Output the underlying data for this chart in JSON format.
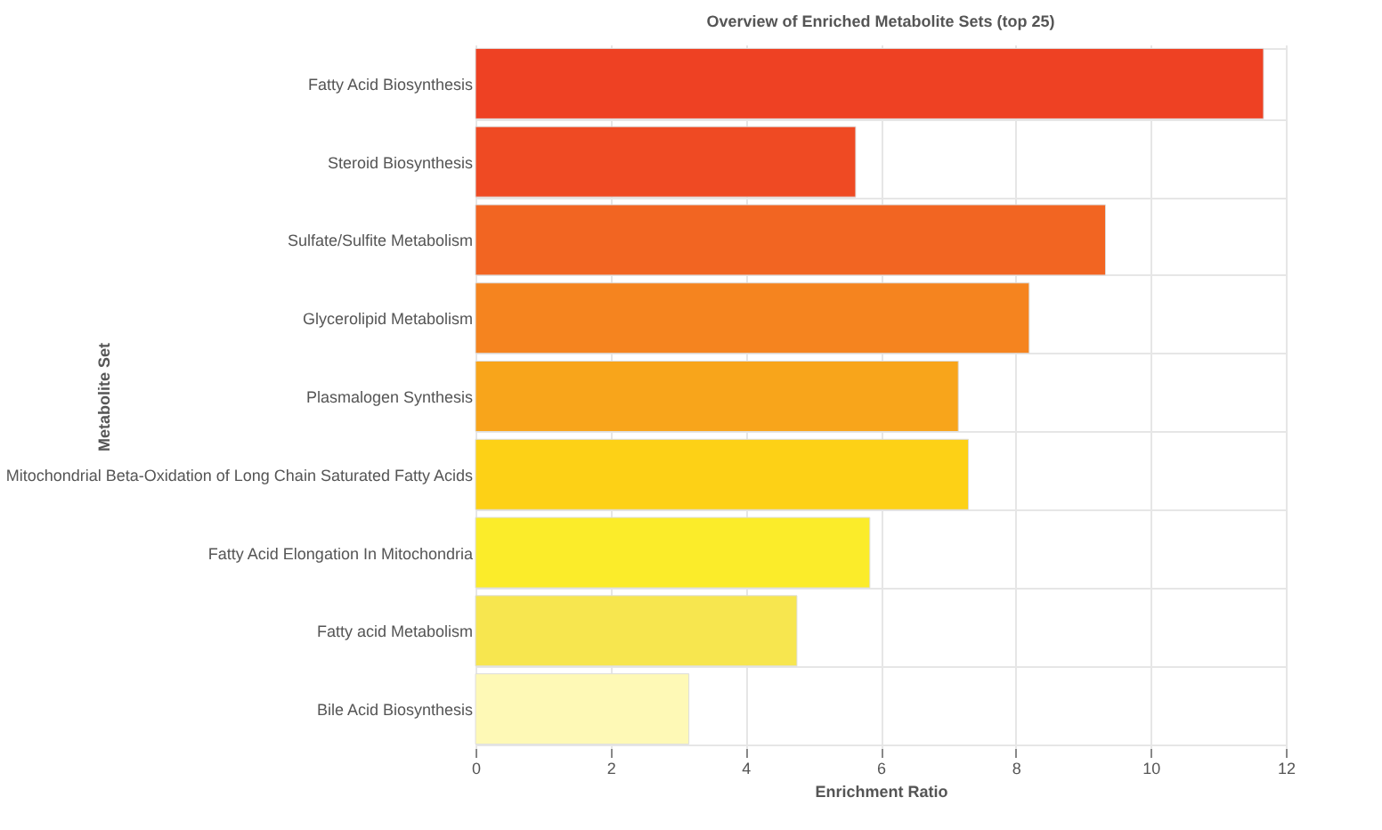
{
  "chart_data": {
    "type": "bar",
    "orientation": "horizontal",
    "title": "Overview of Enriched Metabolite Sets (top 25)",
    "xlabel": "Enrichment Ratio",
    "ylabel": "Metabolite Set",
    "categories": [
      "Fatty Acid Biosynthesis",
      "Steroid Biosynthesis",
      "Sulfate/Sulfite Metabolism",
      "Glycerolipid Metabolism",
      "Plasmalogen Synthesis",
      "Mitochondrial Beta-Oxidation of Long Chain Saturated Fatty Acids",
      "Fatty Acid Elongation In Mitochondria",
      "Fatty acid Metabolism",
      "Bile Acid Biosynthesis"
    ],
    "values": [
      11.67,
      5.63,
      9.33,
      8.2,
      7.15,
      7.3,
      5.84,
      4.76,
      3.16
    ],
    "colors": [
      "#ee4123",
      "#ef4a23",
      "#f26522",
      "#f5841f",
      "#f8a51b",
      "#fdd116",
      "#fbec2a",
      "#f7e64f",
      "#fef9b6"
    ],
    "xlim": [
      0,
      12
    ],
    "xticks": [
      0,
      2,
      4,
      6,
      8,
      10,
      12
    ],
    "grid": true
  }
}
